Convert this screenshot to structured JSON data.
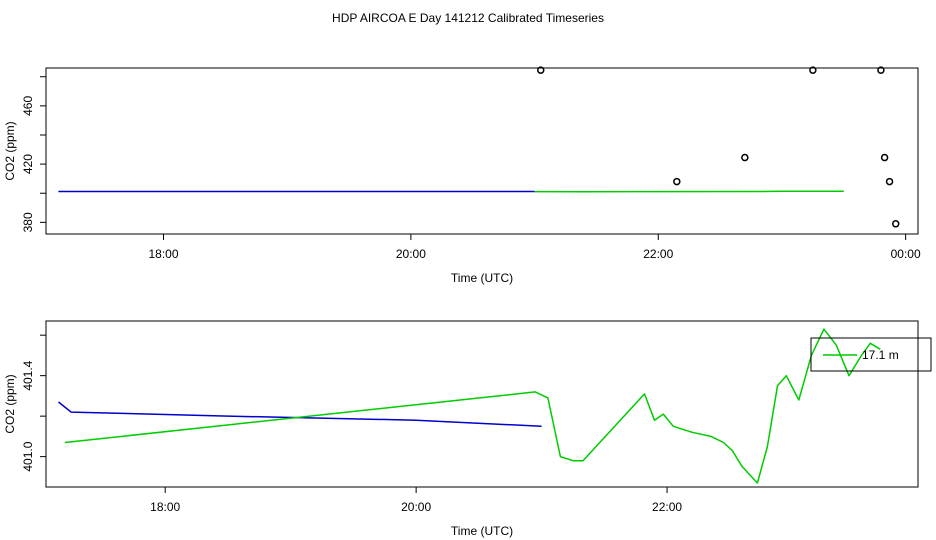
{
  "title": "HDP AIRCOA E  Day 141212  Calibrated Timeseries",
  "colors": {
    "blue": "#0000cc",
    "green": "#00cc00",
    "points": "#000000"
  },
  "chart_data": [
    {
      "type": "line",
      "xlabel": "Time (UTC)",
      "ylabel": "CO2 (ppm)",
      "xlim": [
        17.05,
        24.1
      ],
      "ylim": [
        372,
        486
      ],
      "xticks": [
        {
          "value": 18,
          "label": "18:00"
        },
        {
          "value": 20,
          "label": "20:00"
        },
        {
          "value": 22,
          "label": "22:00"
        },
        {
          "value": 24,
          "label": "00:00"
        }
      ],
      "yticks": [
        {
          "value": 380,
          "label": "380"
        },
        {
          "value": 420,
          "label": "420"
        },
        {
          "value": 460,
          "label": "460"
        }
      ],
      "series": [
        {
          "color": "blue",
          "style": "line",
          "x": [
            17.15,
            18.5,
            21.0
          ],
          "y": [
            401.2,
            401.2,
            401.2
          ]
        },
        {
          "color": "green",
          "style": "line",
          "x": [
            21.0,
            21.4,
            22.0,
            22.8,
            23.0,
            23.5
          ],
          "y": [
            401.1,
            401.0,
            401.1,
            401.2,
            401.3,
            401.3
          ]
        },
        {
          "color": "points",
          "style": "points",
          "x": [
            21.05,
            22.15,
            22.7,
            23.25,
            23.8,
            23.83,
            23.87,
            23.92
          ],
          "y": [
            484.5,
            408,
            424.5,
            484.5,
            484.5,
            424.5,
            408,
            379
          ]
        }
      ]
    },
    {
      "type": "line",
      "xlabel": "Time (UTC)",
      "ylabel": "CO2 (ppm)",
      "xlim": [
        17.05,
        24.0
      ],
      "ylim": [
        400.85,
        401.67
      ],
      "xticks": [
        {
          "value": 18,
          "label": "18:00"
        },
        {
          "value": 20,
          "label": "20:00"
        },
        {
          "value": 22,
          "label": "22:00"
        }
      ],
      "yticks": [
        {
          "value": 401.0,
          "label": "401.0"
        },
        {
          "value": 401.4,
          "label": "401.4"
        }
      ],
      "legend": {
        "position": "top-right",
        "entries": [
          {
            "label": "17.1 m",
            "color": "green"
          }
        ]
      },
      "series": [
        {
          "color": "blue",
          "style": "line",
          "x": [
            17.15,
            17.25,
            18.5,
            20.0,
            21.0
          ],
          "y": [
            401.27,
            401.22,
            401.2,
            401.18,
            401.15
          ]
        },
        {
          "color": "green",
          "style": "line",
          "name": "17.1 m",
          "x": [
            17.2,
            20.95,
            21.05,
            21.15,
            21.25,
            21.33,
            21.82,
            21.9,
            21.97,
            22.05,
            22.2,
            22.35,
            22.45,
            22.52,
            22.6,
            22.72,
            22.8,
            22.88,
            22.95,
            23.05,
            23.15,
            23.25,
            23.35,
            23.45,
            23.55,
            23.62,
            23.7
          ],
          "y": [
            401.07,
            401.32,
            401.29,
            401.0,
            400.98,
            400.98,
            401.31,
            401.18,
            401.21,
            401.15,
            401.12,
            401.1,
            401.07,
            401.03,
            400.95,
            400.87,
            401.05,
            401.35,
            401.4,
            401.28,
            401.5,
            401.63,
            401.55,
            401.4,
            401.5,
            401.56,
            401.53
          ]
        }
      ]
    }
  ]
}
